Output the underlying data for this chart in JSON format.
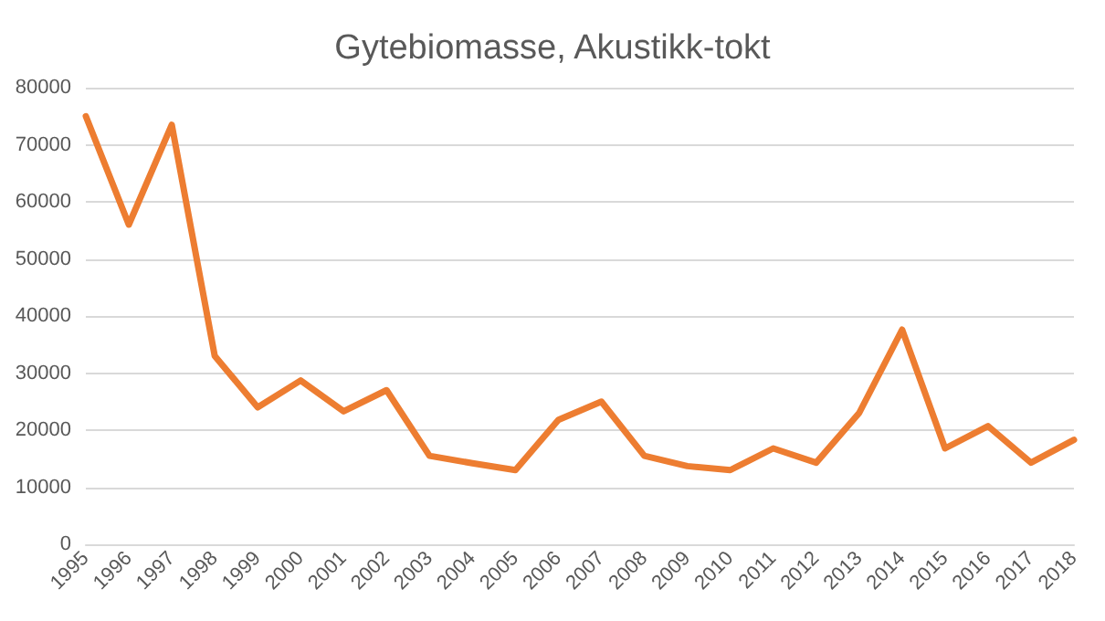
{
  "chart_data": {
    "type": "line",
    "title": "Gytebiomasse, Akustikk-tokt",
    "categories": [
      "1995",
      "1996",
      "1997",
      "1998",
      "1999",
      "2000",
      "2001",
      "2002",
      "2003",
      "2004",
      "2005",
      "2006",
      "2007",
      "2008",
      "2009",
      "2010",
      "2011",
      "2012",
      "2013",
      "2014",
      "2015",
      "2016",
      "2017",
      "2018"
    ],
    "series": [
      {
        "color": "#ed7d31",
        "values": [
          75000,
          56000,
          73500,
          33000,
          24000,
          28700,
          23300,
          27000,
          15500,
          14200,
          13000,
          21800,
          25000,
          15500,
          13700,
          13000,
          16800,
          14300,
          23000,
          37600,
          16800,
          20700,
          14300,
          18300
        ]
      }
    ],
    "ylim": [
      0,
      80000
    ],
    "yticks": [
      0,
      10000,
      20000,
      30000,
      40000,
      50000,
      60000,
      70000,
      80000
    ],
    "grid": "y",
    "marker": "none",
    "line_style": "solid",
    "legend": false
  }
}
